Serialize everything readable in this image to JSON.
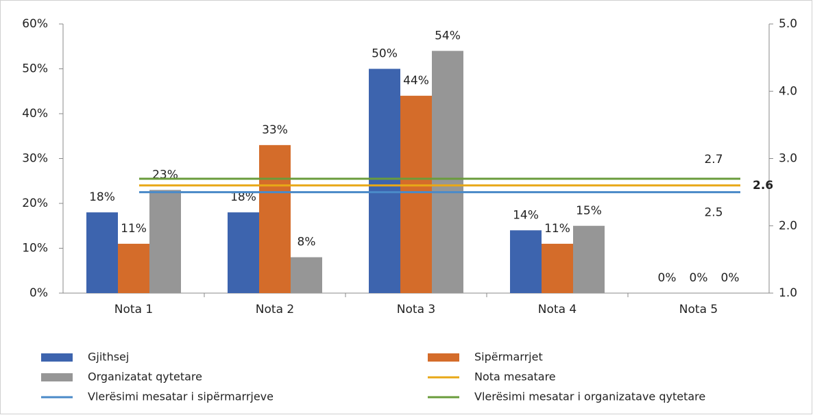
{
  "chart_data": {
    "type": "bar",
    "categories": [
      "Nota  1",
      "Nota  2",
      "Nota 3",
      "Nota  4",
      "Nota 5"
    ],
    "series": [
      {
        "name": "Gjithsej",
        "color": "#3d64ae",
        "values": [
          18,
          18,
          50,
          14,
          0
        ],
        "value_labels": [
          "18%",
          "18%",
          "50%",
          "14%",
          "0%"
        ]
      },
      {
        "name": "Sipërmarrjet",
        "color": "#d46c2a",
        "values": [
          11,
          33,
          44,
          11,
          0
        ],
        "value_labels": [
          "11%",
          "33%",
          "44%",
          "11%",
          "0%"
        ]
      },
      {
        "name": "Organizatat qytetare",
        "color": "#969696",
        "values": [
          23,
          8,
          54,
          15,
          0
        ],
        "value_labels": [
          "23%",
          "8%",
          "54%",
          "15%",
          "0%"
        ]
      }
    ],
    "lines": [
      {
        "name": "Nota mesatare",
        "color": "#e8a817",
        "axis": "y2",
        "value": 2.6,
        "bold": true
      },
      {
        "name": "Vlerësimi mesatar i sipërmarrjeve",
        "color": "#4a8ac8",
        "axis": "y2",
        "value": 2.5
      },
      {
        "name": "Vlerësimi mesatar i organizatave qytetare",
        "color": "#6a9c3c",
        "axis": "y2",
        "value": 2.7
      }
    ],
    "ylim": [
      0,
      60
    ],
    "yticks": [
      {
        "value": 0,
        "label": "0%"
      },
      {
        "value": 10,
        "label": "10%"
      },
      {
        "value": 20,
        "label": "20%"
      },
      {
        "value": 30,
        "label": "30%"
      },
      {
        "value": 40,
        "label": "40%"
      },
      {
        "value": 50,
        "label": "50%"
      },
      {
        "value": 60,
        "label": "60%"
      }
    ],
    "y2lim": [
      1,
      5
    ],
    "y2ticks": [
      {
        "value": 1,
        "label": "1.0"
      },
      {
        "value": 2,
        "label": "2.0"
      },
      {
        "value": 3,
        "label": "3.0"
      },
      {
        "value": 4,
        "label": "4.0"
      },
      {
        "value": 5,
        "label": "5.0"
      }
    ],
    "legend": "bottom"
  }
}
